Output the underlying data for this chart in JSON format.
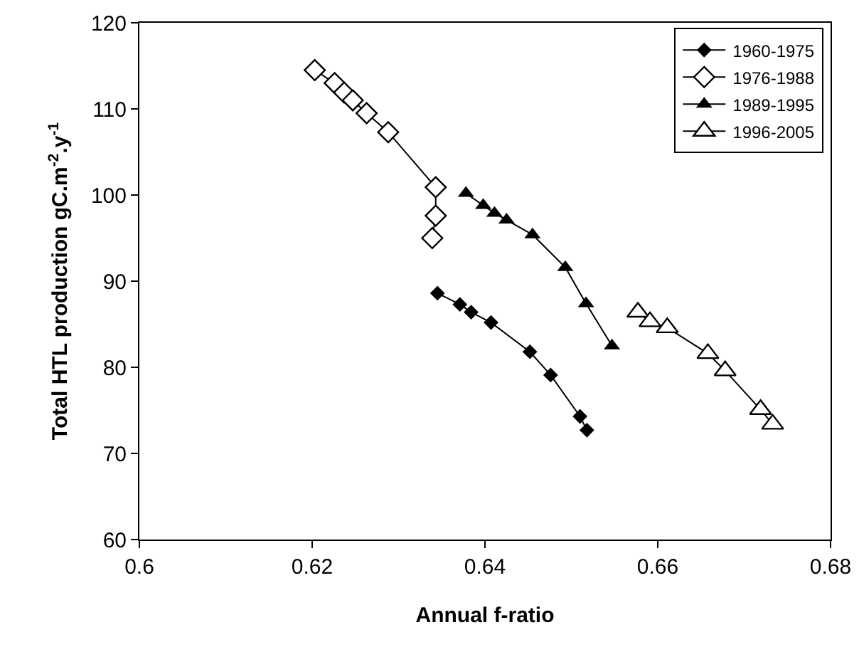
{
  "chart_data": {
    "type": "line",
    "xlabel": "Annual f-ratio",
    "ylabel": "Total HTL production gC.m$^{-2}$.y$^{-1}$",
    "xlim": [
      0.6,
      0.68
    ],
    "xticks": [
      0.6,
      0.62,
      0.64,
      0.66,
      0.68
    ],
    "ylim": [
      60,
      120
    ],
    "yticks": [
      60,
      70,
      80,
      90,
      100,
      110,
      120
    ],
    "grid": false,
    "legend": "top right",
    "line_style": "solid",
    "series": [
      {
        "name": "1960-1975",
        "color": "#000000",
        "marker": "diamond",
        "x": [
          0.6345,
          0.6371,
          0.6384,
          0.6407,
          0.6452,
          0.6476,
          0.651,
          0.6518
        ],
        "values": [
          88.6,
          87.3,
          86.4,
          85.2,
          81.8,
          79.1,
          74.3,
          72.7
        ]
      },
      {
        "name": "1976-1988",
        "color": "#000000",
        "marker": "diamond",
        "colors": [
          "#ffffff",
          "#ffffff",
          "#ffffff",
          "#ffffff",
          "#ffffff",
          "#ffffff",
          "#ffffff",
          "#ffffff",
          "#ffffff"
        ],
        "x": [
          0.6203,
          0.6226,
          0.6237,
          0.6247,
          0.6263,
          0.6288,
          0.6343,
          0.6343,
          0.6339
        ],
        "values": [
          114.5,
          113.0,
          111.9,
          111.0,
          109.5,
          107.3,
          100.9,
          97.6,
          95.0
        ]
      },
      {
        "name": "1989-1995",
        "color": "#000000",
        "marker": "triangle",
        "x": [
          0.6378,
          0.6398,
          0.6411,
          0.6425,
          0.6455,
          0.6493,
          0.6517,
          0.6547
        ],
        "values": [
          100.2,
          98.8,
          97.9,
          97.1,
          95.4,
          91.6,
          87.4,
          82.5
        ]
      },
      {
        "name": "1996-2005",
        "color": "#000000",
        "marker": "triangle",
        "colors": [
          "#ffffff",
          "#ffffff",
          "#ffffff",
          "#ffffff",
          "#ffffff",
          "#ffffff",
          "#ffffff"
        ],
        "x": [
          0.6577,
          0.6591,
          0.6611,
          0.6658,
          0.6678,
          0.6719,
          0.6733
        ],
        "values": [
          86.4,
          85.3,
          84.6,
          81.6,
          79.6,
          75.1,
          73.4
        ]
      }
    ]
  }
}
